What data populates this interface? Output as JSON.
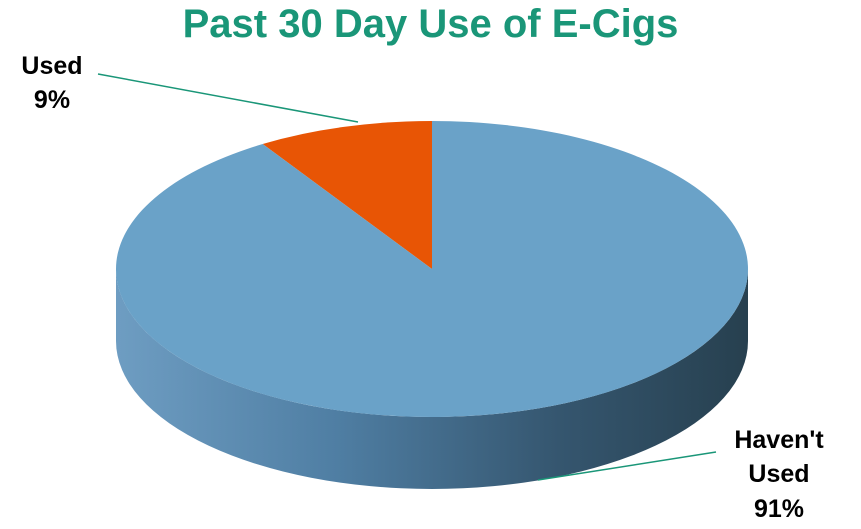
{
  "chart_data": {
    "type": "pie",
    "title": "Past 30 Day Use of E-Cigs",
    "slices": [
      {
        "label": "Used",
        "value_label": "9%",
        "value": 9,
        "color": "#e85505"
      },
      {
        "label": "Haven't Used",
        "value_label": "91%",
        "value": 91,
        "color": "#6aa2c8"
      }
    ],
    "style": "3d",
    "legend": "none",
    "leader_line_color": "#1a9678"
  }
}
